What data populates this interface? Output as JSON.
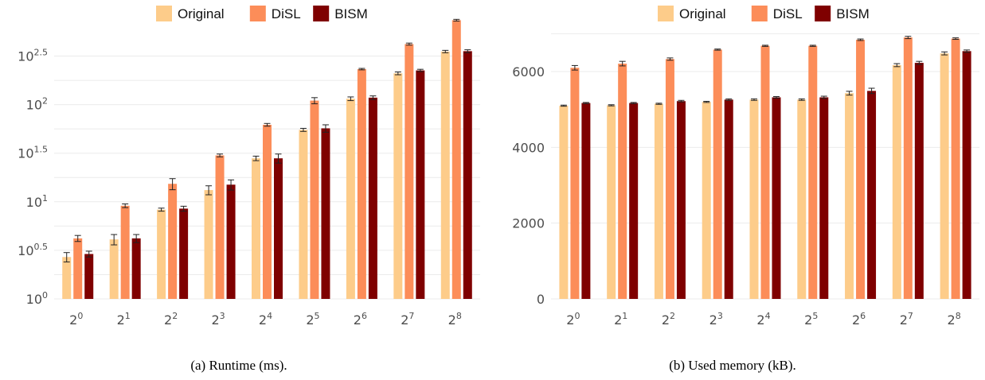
{
  "chart_data": [
    {
      "type": "bar",
      "categories": [
        "2^0",
        "2^1",
        "2^2",
        "2^3",
        "2^4",
        "2^5",
        "2^6",
        "2^7",
        "2^8"
      ],
      "x_labels": [
        {
          "base": "2",
          "exp": "0"
        },
        {
          "base": "2",
          "exp": "1"
        },
        {
          "base": "2",
          "exp": "2"
        },
        {
          "base": "2",
          "exp": "3"
        },
        {
          "base": "2",
          "exp": "4"
        },
        {
          "base": "2",
          "exp": "5"
        },
        {
          "base": "2",
          "exp": "6"
        },
        {
          "base": "2",
          "exp": "7"
        },
        {
          "base": "2",
          "exp": "8"
        }
      ],
      "scale": "log10",
      "ylim": [
        1,
        562
      ],
      "y_ticks": [
        {
          "value": 1,
          "base": "10",
          "exp": "0"
        },
        {
          "value": 3.1623,
          "base": "10",
          "exp": "0.5"
        },
        {
          "value": 10,
          "base": "10",
          "exp": "1"
        },
        {
          "value": 31.623,
          "base": "10",
          "exp": "1.5"
        },
        {
          "value": 100,
          "base": "10",
          "exp": "2"
        },
        {
          "value": 316.23,
          "base": "10",
          "exp": "2.5"
        }
      ],
      "series": [
        {
          "name": "Original",
          "color": "#fdcc8a",
          "values": [
            2.7,
            4.1,
            8.3,
            13.2,
            28.0,
            55.0,
            115.0,
            210.0,
            352.0
          ],
          "errors": [
            0.3,
            0.5,
            0.3,
            1.4,
            1.5,
            2.0,
            5.0,
            7.0,
            10.0
          ]
        },
        {
          "name": "DiSL",
          "color": "#fc8d59",
          "values": [
            4.2,
            9.1,
            15.3,
            30.0,
            62.0,
            110.0,
            232.0,
            420.0,
            740.0
          ],
          "errors": [
            0.3,
            0.4,
            2.0,
            1.0,
            2.0,
            8.0,
            4.0,
            10.0,
            15.0
          ]
        },
        {
          "name": "BISM",
          "color": "#7f0000",
          "values": [
            2.9,
            4.2,
            8.5,
            15.0,
            28.0,
            57.0,
            118.0,
            225.0,
            355.0
          ],
          "errors": [
            0.2,
            0.4,
            0.5,
            1.8,
            3.0,
            5.0,
            5.0,
            6.0,
            12.0
          ]
        }
      ],
      "legend": "top",
      "grid": true,
      "caption": "(a) Runtime (ms)."
    },
    {
      "type": "bar",
      "categories": [
        "2^0",
        "2^1",
        "2^2",
        "2^3",
        "2^4",
        "2^5",
        "2^6",
        "2^7",
        "2^8"
      ],
      "x_labels": [
        {
          "base": "2",
          "exp": "0"
        },
        {
          "base": "2",
          "exp": "1"
        },
        {
          "base": "2",
          "exp": "2"
        },
        {
          "base": "2",
          "exp": "3"
        },
        {
          "base": "2",
          "exp": "4"
        },
        {
          "base": "2",
          "exp": "5"
        },
        {
          "base": "2",
          "exp": "6"
        },
        {
          "base": "2",
          "exp": "7"
        },
        {
          "base": "2",
          "exp": "8"
        }
      ],
      "scale": "linear",
      "ylim": [
        0,
        7050
      ],
      "y_ticks": [
        {
          "value": 0,
          "label": "0"
        },
        {
          "value": 2000,
          "label": "2000"
        },
        {
          "value": 4000,
          "label": "4000"
        },
        {
          "value": 6000,
          "label": "6000"
        }
      ],
      "series": [
        {
          "name": "Original",
          "color": "#fdcc8a",
          "values": [
            5100,
            5110,
            5150,
            5200,
            5260,
            5260,
            5430,
            6170,
            6480
          ],
          "errors": [
            15,
            15,
            15,
            15,
            20,
            20,
            50,
            40,
            40
          ]
        },
        {
          "name": "DiSL",
          "color": "#fc8d59",
          "values": [
            6100,
            6210,
            6330,
            6580,
            6680,
            6680,
            6840,
            6900,
            6870
          ],
          "errors": [
            60,
            60,
            30,
            15,
            15,
            15,
            20,
            30,
            20
          ]
        },
        {
          "name": "BISM",
          "color": "#7f0000",
          "values": [
            5170,
            5170,
            5220,
            5260,
            5320,
            5320,
            5490,
            6230,
            6540
          ],
          "errors": [
            15,
            15,
            20,
            20,
            20,
            30,
            70,
            40,
            30
          ]
        }
      ],
      "legend": "top",
      "grid": true,
      "caption": "(b) Used memory (kB)."
    }
  ]
}
